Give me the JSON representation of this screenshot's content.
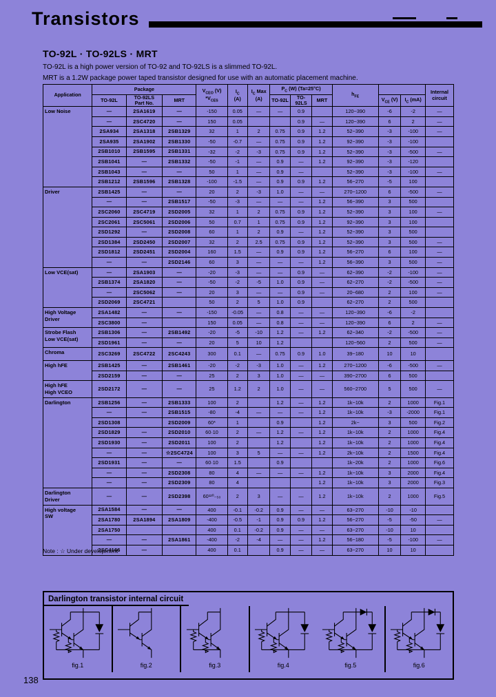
{
  "colors": {
    "background": "#8d83d9",
    "ink": "#000000"
  },
  "page": {
    "number": "138"
  },
  "header": {
    "title": "Transistors"
  },
  "intro": {
    "heading": "TO-92L · TO-92LS · MRT",
    "line1": "TO-92L is a high power version of TO-92 and TO-92LS is a slimmed TO-92L.",
    "line2": "MRT is a 1.2W package power taped transistor designed for use with an automatic placement machine."
  },
  "table": {
    "header": {
      "application": "Application",
      "package": "Package",
      "part_no": "Part No.",
      "to92l": "TO-92L",
      "to92ls": "TO-92LS",
      "mrt": "MRT",
      "vceo_main": "V",
      "vceo_sub": "CEO",
      "vceo_unit": " (V)",
      "vces_star": "*V",
      "vces_sub": "CES",
      "ic_main": "I",
      "ic_sub": "C",
      "ic_unit": "(A)",
      "icmax_main": "I",
      "icmax_sub": "C",
      "icmax_label": " Max",
      "icmax_unit": "(A)",
      "pc_main": "P",
      "pc_sub": "C",
      "pc_unit": " (W) (Ta=25°C)",
      "pc_to92l": "TO-92L",
      "pc_to92ls": "TO-92LS",
      "pc_mrt": "MRT",
      "hfe_main": "h",
      "hfe_sub": "FE",
      "vce_main": "V",
      "vce_sub": "CE",
      "vce_unit": " (V)",
      "icma_main": "I",
      "icma_sub": "C",
      "icma_unit": " (mA)",
      "internal_1": "Internal",
      "internal_2": "circuit"
    },
    "sections": [
      {
        "label": "Low Noise",
        "rows": [
          {
            "to92l": "—",
            "to92ls": "2SA1619",
            "mrt": "—",
            "vceo": "-150",
            "ic": "0.05",
            "ic_max": "—",
            "pc_to92l": "—",
            "pc_to92ls": "0.9",
            "pc_mrt": "",
            "hfe": "120~390",
            "vce": "-6",
            "ic_ma": "-2",
            "circuit": "—"
          },
          {
            "to92l": "—",
            "to92ls": "2SC4720",
            "mrt": "—",
            "vceo": "150",
            "ic": "0.05",
            "ic_max": "",
            "pc_to92l": "",
            "pc_to92ls": "0.9",
            "pc_mrt": "—",
            "hfe": "120~390",
            "vce": "6",
            "ic_ma": "2",
            "circuit": "—"
          },
          {
            "to92l": "2SA934",
            "to92ls": "2SA1318",
            "mrt": "2SB1329",
            "vceo": "32",
            "ic": "1",
            "ic_max": "2",
            "pc_to92l": "0.75",
            "pc_to92ls": "0.9",
            "pc_mrt": "1.2",
            "hfe": "52~390",
            "vce": "-3",
            "ic_ma": "-100",
            "circuit": "—"
          },
          {
            "to92l": "2SA935",
            "to92ls": "2SA1902",
            "mrt": "2SB1330",
            "vceo": "-50",
            "ic": "-0.7",
            "ic_max": "—",
            "pc_to92l": "0.75",
            "pc_to92ls": "0.9",
            "pc_mrt": "1.2",
            "hfe": "92~390",
            "vce": "-3",
            "ic_ma": "-100",
            "circuit": ""
          },
          {
            "to92l": "2SB1010",
            "to92ls": "2SB1595",
            "mrt": "2SB1331",
            "vceo": "-32",
            "ic": "-2",
            "ic_max": "-3",
            "pc_to92l": "0.75",
            "pc_to92ls": "0.9",
            "pc_mrt": "1.2",
            "hfe": "52~390",
            "vce": "-3",
            "ic_ma": "-500",
            "circuit": "—"
          },
          {
            "to92l": "2SB1041",
            "to92ls": "—",
            "mrt": "2SB1332",
            "vceo": "-50",
            "ic": "-1",
            "ic_max": "—",
            "pc_to92l": "0.9",
            "pc_to92ls": "—",
            "pc_mrt": "1.2",
            "hfe": "92~390",
            "vce": "-3",
            "ic_ma": "-120",
            "circuit": ""
          },
          {
            "to92l": "2SB1043",
            "to92ls": "—",
            "mrt": "—",
            "vceo": "50",
            "ic": "1",
            "ic_max": "—",
            "pc_to92l": "0.9",
            "pc_to92ls": "—",
            "pc_mrt": "",
            "hfe": "52~390",
            "vce": "-3",
            "ic_ma": "-100",
            "circuit": "—"
          },
          {
            "to92l": "2SB1212",
            "to92ls": "2SB1596",
            "mrt": "2SB1328",
            "vceo": "-100",
            "ic": "-1.5",
            "ic_max": "—",
            "pc_to92l": "0.9",
            "pc_to92ls": "0.9",
            "pc_mrt": "1.2",
            "hfe": "56~270",
            "vce": "-5",
            "ic_ma": "100",
            "circuit": ""
          }
        ]
      },
      {
        "label": "Driver",
        "rows": [
          {
            "to92l": "2SB1425",
            "to92ls": "—",
            "mrt": "—",
            "vceo": "20",
            "ic": "2",
            "ic_max": "-3",
            "pc_to92l": "1.0",
            "pc_to92ls": "—",
            "pc_mrt": "—",
            "hfe": "270~1200",
            "vce": "6",
            "ic_ma": "-500",
            "circuit": "—"
          },
          {
            "to92l": "—",
            "to92ls": "—",
            "mrt": "2SB1517",
            "vceo": "-50",
            "ic": "-3",
            "ic_max": "—",
            "pc_to92l": "—",
            "pc_to92ls": "—",
            "pc_mrt": "1.2",
            "hfe": "56~390",
            "vce": "3",
            "ic_ma": "500",
            "circuit": ""
          },
          {
            "to92l": "2SC2060",
            "to92ls": "2SC4719",
            "mrt": "2SD2005",
            "vceo": "32",
            "ic": "1",
            "ic_max": "2",
            "pc_to92l": "0.75",
            "pc_to92ls": "0.9",
            "pc_mrt": "1.2",
            "hfe": "52~390",
            "vce": "3",
            "ic_ma": "100",
            "circuit": "—"
          },
          {
            "to92l": "2SC2061",
            "to92ls": "2SC5061",
            "mrt": "2SD2006",
            "vceo": "50",
            "ic": "0.7",
            "ic_max": "1",
            "pc_to92l": "0.75",
            "pc_to92ls": "0.9",
            "pc_mrt": "1.2",
            "hfe": "92~390",
            "vce": "3",
            "ic_ma": "100",
            "circuit": ""
          },
          {
            "to92l": "2SD1292",
            "to92ls": "—",
            "mrt": "2SD2008",
            "vceo": "60",
            "ic": "1",
            "ic_max": "2",
            "pc_to92l": "0.9",
            "pc_to92ls": "—",
            "pc_mrt": "1.2",
            "hfe": "52~390",
            "vce": "3",
            "ic_ma": "500",
            "circuit": ""
          },
          {
            "to92l": "2SD1384",
            "to92ls": "2SD2450",
            "mrt": "2SD2007",
            "vceo": "32",
            "ic": "2",
            "ic_max": "2.5",
            "pc_to92l": "0.75",
            "pc_to92ls": "0.9",
            "pc_mrt": "1.2",
            "hfe": "52~390",
            "vce": "3",
            "ic_ma": "500",
            "circuit": "—"
          },
          {
            "to92l": "2SD1812",
            "to92ls": "2SD2451",
            "mrt": "2SD2004",
            "vceo": "160",
            "ic": "1.5",
            "ic_max": "—",
            "pc_to92l": "0.9",
            "pc_to92ls": "0.9",
            "pc_mrt": "1.2",
            "hfe": "56~270",
            "vce": "6",
            "ic_ma": "100",
            "circuit": "—"
          },
          {
            "to92l": "—",
            "to92ls": "—",
            "mrt": "2SD2146",
            "vceo": "60",
            "ic": "3",
            "ic_max": "—",
            "pc_to92l": "—",
            "pc_to92ls": "—",
            "pc_mrt": "1.2",
            "hfe": "56~390",
            "vce": "3",
            "ic_ma": "500",
            "circuit": "—"
          }
        ]
      },
      {
        "label": "Low VCE(sat)",
        "rows": [
          {
            "to92l": "—",
            "to92ls": "2SA1903",
            "mrt": "—",
            "vceo": "-20",
            "ic": "-3",
            "ic_max": "—",
            "pc_to92l": "—",
            "pc_to92ls": "0.9",
            "pc_mrt": "—",
            "hfe": "62~390",
            "vce": "-2",
            "ic_ma": "-100",
            "circuit": "—"
          },
          {
            "to92l": "2SB1374",
            "to92ls": "2SA1820",
            "mrt": "—",
            "vceo": "-50",
            "ic": "-2",
            "ic_max": "-5",
            "pc_to92l": "1.0",
            "pc_to92ls": "0.9",
            "pc_mrt": "—",
            "hfe": "62~270",
            "vce": "-2",
            "ic_ma": "-500",
            "circuit": "—"
          },
          {
            "to92l": "—",
            "to92ls": "2SC5062",
            "mrt": "—",
            "vceo": "20",
            "ic": "3",
            "ic_max": "—",
            "pc_to92l": "—",
            "pc_to92ls": "0.9",
            "pc_mrt": "—",
            "hfe": "20~680",
            "vce": "2",
            "ic_ma": "100",
            "circuit": "—"
          },
          {
            "to92l": "2SD2069",
            "to92ls": "2SC4721",
            "mrt": "",
            "vceo": "50",
            "ic": "2",
            "ic_max": "5",
            "pc_to92l": "1.0",
            "pc_to92ls": "0.9",
            "pc_mrt": "",
            "hfe": "62~270",
            "vce": "2",
            "ic_ma": "500",
            "circuit": ""
          }
        ]
      },
      {
        "label": "High Voltage\nDriver",
        "rows": [
          {
            "to92l": "2SA1482",
            "to92ls": "—",
            "mrt": "—",
            "vceo": "-150",
            "ic": "-0.05",
            "ic_max": "—",
            "pc_to92l": "0.8",
            "pc_to92ls": "—",
            "pc_mrt": "—",
            "hfe": "120~390",
            "vce": "-6",
            "ic_ma": "-2",
            "circuit": ""
          },
          {
            "to92l": "2SC3800",
            "to92ls": "—",
            "mrt": "",
            "vceo": "150",
            "ic": "0.05",
            "ic_max": "—",
            "pc_to92l": "0.8",
            "pc_to92ls": "—",
            "pc_mrt": "—",
            "hfe": "120~390",
            "vce": "6",
            "ic_ma": "2",
            "circuit": "—"
          }
        ]
      },
      {
        "label": "Strobe Flash\nLow VCE(sat)",
        "rows": [
          {
            "to92l": "2SB1306",
            "to92ls": "—",
            "mrt": "2SB1492",
            "vceo": "-20",
            "ic": "-5",
            "ic_max": "-10",
            "pc_to92l": "1.2",
            "pc_to92ls": "—",
            "pc_mrt": "1.2",
            "hfe": "62~340",
            "vce": "-2",
            "ic_ma": "-500",
            "circuit": "—"
          },
          {
            "to92l": "2SD1961",
            "to92ls": "—",
            "mrt": "—",
            "vceo": "20",
            "ic": "5",
            "ic_max": "10",
            "pc_to92l": "1.2",
            "pc_to92ls": "",
            "pc_mrt": "",
            "hfe": "120~560",
            "vce": "2",
            "ic_ma": "500",
            "circuit": "—"
          }
        ]
      },
      {
        "label": "Chroma",
        "rows": [
          {
            "to92l": "2SC3269",
            "to92ls": "2SC4722",
            "mrt": "2SC4243",
            "vceo": "300",
            "ic": "0.1",
            "ic_max": "—",
            "pc_to92l": "0.75",
            "pc_to92ls": "0.9",
            "pc_mrt": "1.0",
            "hfe": "39~180",
            "vce": "10",
            "ic_ma": "10",
            "circuit": ""
          }
        ]
      },
      {
        "label": "High hFE",
        "rows": [
          {
            "to92l": "2SB1425",
            "to92ls": "—",
            "mrt": "2SB1461",
            "vceo": "-20",
            "ic": "-2",
            "ic_max": "-3",
            "pc_to92l": "1.0",
            "pc_to92ls": "—",
            "pc_mrt": "1.2",
            "hfe": "270~1200",
            "vce": "-6",
            "ic_ma": "-500",
            "circuit": "—"
          },
          {
            "to92l": "2SD2159",
            "to92ls": "—",
            "mrt": "—",
            "vceo": "25",
            "ic": "2",
            "ic_max": "3",
            "pc_to92l": "1.0",
            "pc_to92ls": "—",
            "pc_mrt": "—",
            "hfe": "390~2700",
            "vce": "6",
            "ic_ma": "500",
            "circuit": ""
          }
        ]
      },
      {
        "label": "High hFE\nHigh VCEO",
        "rows": [
          {
            "to92l": "2SD2172",
            "to92ls": "—",
            "mrt": "—",
            "vceo": "25",
            "ic": "1.2",
            "ic_max": "2",
            "pc_to92l": "1.0",
            "pc_to92ls": "—",
            "pc_mrt": "—",
            "hfe": "560~2700",
            "vce": "5",
            "ic_ma": "500",
            "circuit": "—"
          }
        ]
      },
      {
        "label": "Darlington",
        "rows": [
          {
            "to92l": "2SB1256",
            "to92ls": "—",
            "mrt": "2SB1333",
            "vceo": "100",
            "ic": "2",
            "ic_max": "",
            "pc_to92l": "1.2",
            "pc_to92ls": "—",
            "pc_mrt": "1.2",
            "hfe": "1k~10k",
            "vce": "2",
            "ic_ma": "1000",
            "circuit": "Fig.1"
          },
          {
            "to92l": "—",
            "to92ls": "—",
            "mrt": "2SB1515",
            "vceo": "-80",
            "ic": "-4",
            "ic_max": "—",
            "pc_to92l": "—",
            "pc_to92ls": "—",
            "pc_mrt": "1.2",
            "hfe": "1k~10k",
            "vce": "-3",
            "ic_ma": "-2000",
            "circuit": "Fig.1"
          },
          {
            "to92l": "2SD1308",
            "to92ls": "",
            "mrt": "2SD2009",
            "vceo": "60*",
            "ic": "1",
            "ic_max": "",
            "pc_to92l": "0.9",
            "pc_to92ls": "",
            "pc_mrt": "1.2",
            "hfe": "2k~",
            "vce": "3",
            "ic_ma": "500",
            "circuit": "Fig.2"
          },
          {
            "to92l": "2SD1829",
            "to92ls": "—",
            "mrt": "2SD2010",
            "vceo": "60·10",
            "ic": "2",
            "ic_max": "—",
            "pc_to92l": "1.2",
            "pc_to92ls": "—",
            "pc_mrt": "1.2",
            "hfe": "1k~10k",
            "vce": "2",
            "ic_ma": "1000",
            "circuit": "Fig.4"
          },
          {
            "to92l": "2SD1930",
            "to92ls": "—",
            "mrt": "2SD2011",
            "vceo": "100",
            "ic": "2",
            "ic_max": "",
            "pc_to92l": "1.2",
            "pc_to92ls": "",
            "pc_mrt": "1.2",
            "hfe": "1k~10k",
            "vce": "2",
            "ic_ma": "1000",
            "circuit": "Fig.4"
          },
          {
            "to92l": "—",
            "to92ls": "—",
            "mrt": "☆2SC4724",
            "vceo": "100",
            "ic": "3",
            "ic_max": "5",
            "pc_to92l": "—",
            "pc_to92ls": "—",
            "pc_mrt": "1.2",
            "hfe": "2k~10k",
            "vce": "2",
            "ic_ma": "1500",
            "circuit": "Fig.4"
          },
          {
            "to92l": "2SD1931",
            "to92ls": "—",
            "mrt": "—",
            "vceo": "60·10",
            "ic": "1.5",
            "ic_max": "",
            "pc_to92l": "0.9",
            "pc_to92ls": "",
            "pc_mrt": "",
            "hfe": "1k~20k",
            "vce": "2",
            "ic_ma": "1000",
            "circuit": "Fig.6"
          },
          {
            "to92l": "—",
            "to92ls": "—",
            "mrt": "2SD2308",
            "vceo": "80",
            "ic": "4",
            "ic_max": "—",
            "pc_to92l": "—",
            "pc_to92ls": "—",
            "pc_mrt": "1.2",
            "hfe": "1k~10k",
            "vce": "3",
            "ic_ma": "2000",
            "circuit": "Fig.4"
          },
          {
            "to92l": "—",
            "to92ls": "—",
            "mrt": "2SD2309",
            "vceo": "80",
            "ic": "4",
            "ic_max": "",
            "pc_to92l": "",
            "pc_to92ls": "",
            "pc_mrt": "1.2",
            "hfe": "1k~10k",
            "vce": "3",
            "ic_ma": "2000",
            "circuit": "Fig.3"
          }
        ]
      },
      {
        "label": "Darlington\nDriver",
        "rows": [
          {
            "to92l": "—",
            "to92ls": "—",
            "mrt": "2SD2398",
            "vceo": "60¹²⁰₋₅₀",
            "ic": "2",
            "ic_max": "3",
            "pc_to92l": "—",
            "pc_to92ls": "—",
            "pc_mrt": "1.2",
            "hfe": "1k~10k",
            "vce": "2",
            "ic_ma": "1000",
            "circuit": "Fig.5"
          }
        ]
      },
      {
        "label": "High voltage\nSW",
        "rows": [
          {
            "to92l": "2SA1584",
            "to92ls": "—",
            "mrt": "—",
            "vceo": "400",
            "ic": "-0.1",
            "ic_max": "-0.2",
            "pc_to92l": "0.9",
            "pc_to92ls": "—",
            "pc_mrt": "—",
            "hfe": "63~270",
            "vce": "-10",
            "ic_ma": "-10",
            "circuit": ""
          },
          {
            "to92l": "2SA1780",
            "to92ls": "2SA1894",
            "mrt": "2SA1809",
            "vceo": "-400",
            "ic": "-0.5",
            "ic_max": "-1",
            "pc_to92l": "0.9",
            "pc_to92ls": "0.9",
            "pc_mrt": "1.2",
            "hfe": "56~270",
            "vce": "-5",
            "ic_ma": "-50",
            "circuit": "—"
          },
          {
            "to92l": "2SA1750",
            "to92ls": "",
            "mrt": "",
            "vceo": "400",
            "ic": "0.1",
            "ic_max": "-0.2",
            "pc_to92l": "0.9",
            "pc_to92ls": "—",
            "pc_mrt": "—",
            "hfe": "63~270",
            "vce": "-10",
            "ic_ma": "10",
            "circuit": ""
          },
          {
            "to92l": "—",
            "to92ls": "—",
            "mrt": "2SA1861",
            "vceo": "-400",
            "ic": "-2",
            "ic_max": "-4",
            "pc_to92l": "—",
            "pc_to92ls": "—",
            "pc_mrt": "1.2",
            "hfe": "56~180",
            "vce": "-5",
            "ic_ma": "-100",
            "circuit": "—"
          },
          {
            "to92l": "2SC4166",
            "to92ls": "—",
            "mrt": "",
            "vceo": "400",
            "ic": "0.1",
            "ic_max": "",
            "pc_to92l": "0.9",
            "pc_to92ls": "—",
            "pc_mrt": "—",
            "hfe": "63~270",
            "vce": "10",
            "ic_ma": "10",
            "circuit": ""
          }
        ]
      }
    ]
  },
  "note": "Note : ☆ Under development",
  "circuit_box": {
    "title": "Darlington transistor internal circuit",
    "figures": [
      "fig.1",
      "fig.2",
      "fig.3",
      "fig.4",
      "fig.5",
      "fig.6"
    ]
  }
}
